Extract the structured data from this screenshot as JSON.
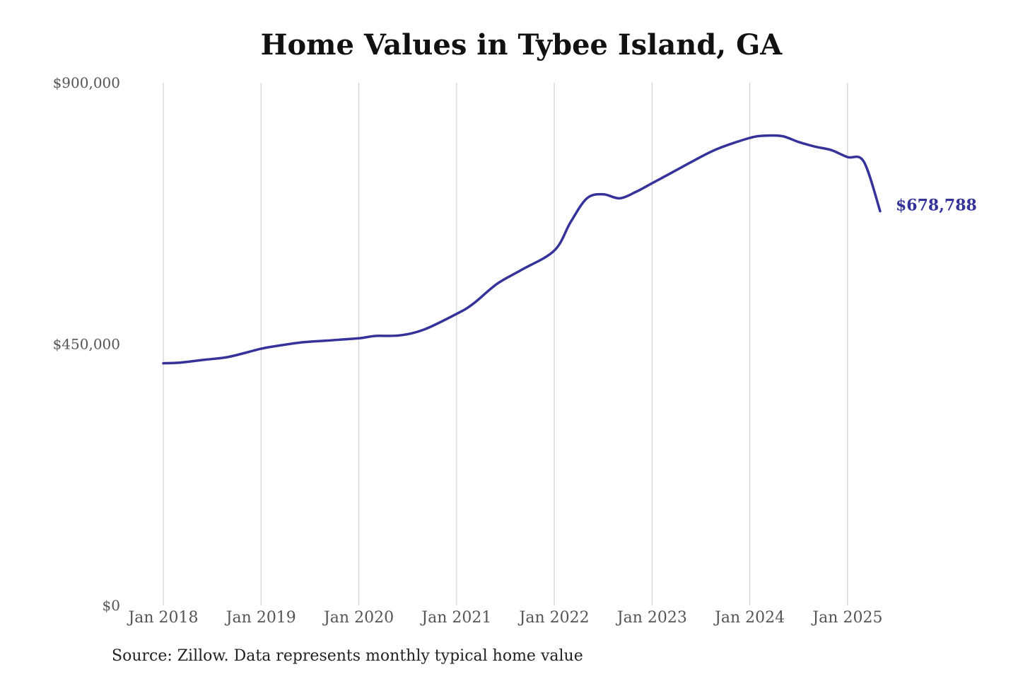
{
  "chart_data": {
    "type": "line",
    "title": "Home Values in Tybee Island, GA",
    "source": "Source: Zillow. Data represents monthly typical home value",
    "xlabel": "",
    "ylabel": "",
    "ylim": [
      0,
      900000
    ],
    "y_ticks": [
      {
        "value": 0,
        "label": "$0"
      },
      {
        "value": 450000,
        "label": "$450,000"
      },
      {
        "value": 900000,
        "label": "$900,000"
      }
    ],
    "x_ticks": [
      {
        "value": "2018-01",
        "label": "Jan 2018"
      },
      {
        "value": "2019-01",
        "label": "Jan 2019"
      },
      {
        "value": "2020-01",
        "label": "Jan 2020"
      },
      {
        "value": "2021-01",
        "label": "Jan 2021"
      },
      {
        "value": "2022-01",
        "label": "Jan 2022"
      },
      {
        "value": "2023-01",
        "label": "Jan 2023"
      },
      {
        "value": "2024-01",
        "label": "Jan 2024"
      },
      {
        "value": "2025-01",
        "label": "Jan 2025"
      }
    ],
    "xlim": [
      "2018-01",
      "2025-05"
    ],
    "grid": "vertical",
    "color": "#35339a",
    "end_label": "$678,788",
    "series": [
      {
        "x": [
          "2018-01",
          "2018-03",
          "2018-06",
          "2018-09",
          "2019-01",
          "2019-03",
          "2019-06",
          "2019-09",
          "2020-01",
          "2020-03",
          "2020-06",
          "2020-09",
          "2021-01",
          "2021-03",
          "2021-06",
          "2021-09",
          "2022-01",
          "2022-03",
          "2022-05",
          "2022-07",
          "2022-09",
          "2022-11",
          "2023-01",
          "2023-03",
          "2023-06",
          "2023-09",
          "2024-01",
          "2024-03",
          "2024-05",
          "2024-07",
          "2024-09",
          "2024-11",
          "2025-01",
          "2025-03",
          "2025-05"
        ],
        "values": [
          417000,
          418000,
          423000,
          428000,
          442000,
          447000,
          453000,
          456000,
          460000,
          464000,
          465000,
          475000,
          502000,
          519000,
          554000,
          578000,
          611000,
          660000,
          701000,
          708000,
          701000,
          712000,
          727000,
          742000,
          765000,
          786000,
          805000,
          809000,
          808000,
          798000,
          790000,
          784000,
          772000,
          764000,
          678788
        ]
      }
    ]
  }
}
